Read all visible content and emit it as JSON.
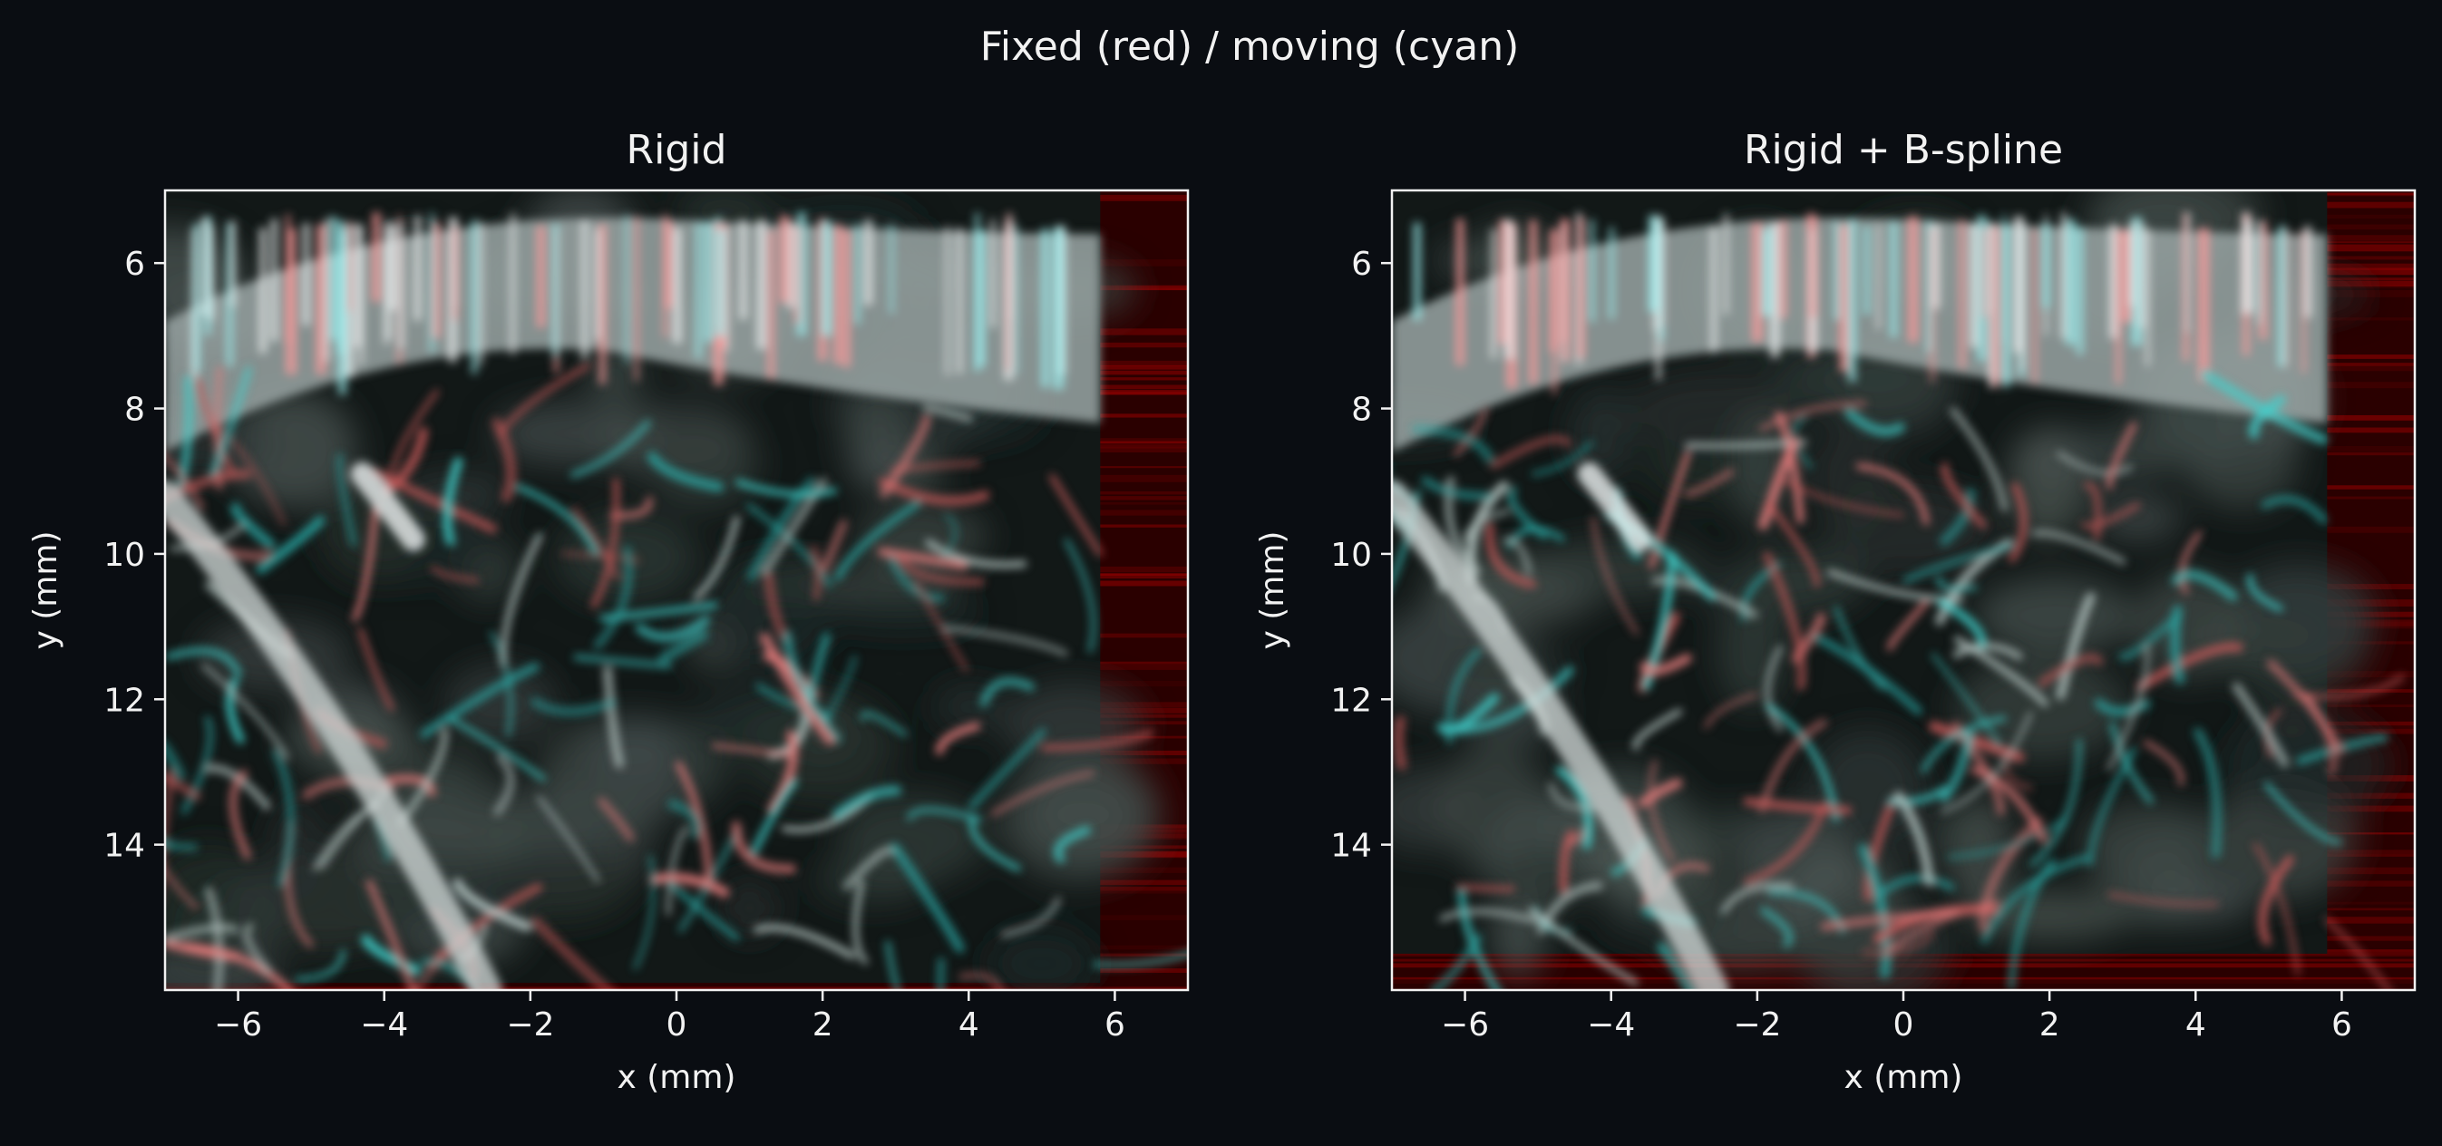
{
  "figure": {
    "suptitle": "Fixed (red) / moving (cyan)",
    "colors": {
      "background": "#0a0d12",
      "text": "#f2f2f2",
      "fixed_overlay": "#ff0000",
      "moving_overlay": "#00ffff"
    }
  },
  "chart_data": [
    {
      "type": "heatmap",
      "title": "Rigid",
      "xlabel": "x (mm)",
      "ylabel": "y (mm)",
      "xlim": [
        -7,
        7
      ],
      "ylim": [
        16,
        5
      ],
      "y_inverted": true,
      "xticks": [
        -6,
        -4,
        -2,
        0,
        2,
        4,
        6
      ],
      "xtick_labels": [
        "−6",
        "−4",
        "−2",
        "0",
        "2",
        "4",
        "6"
      ],
      "yticks": [
        6,
        8,
        10,
        12,
        14
      ],
      "ytick_labels": [
        "6",
        "8",
        "10",
        "12",
        "14"
      ],
      "grid": false,
      "content": "red/cyan overlay of fixed and moving ultrasound images after rigid registration",
      "moving_extent": {
        "x": [
          -7,
          5.8
        ],
        "y": [
          5,
          15.9
        ]
      }
    },
    {
      "type": "heatmap",
      "title": "Rigid + B-spline",
      "xlabel": "x (mm)",
      "ylabel": "y (mm)",
      "xlim": [
        -7,
        7
      ],
      "ylim": [
        16,
        5
      ],
      "y_inverted": true,
      "xticks": [
        -6,
        -4,
        -2,
        0,
        2,
        4,
        6
      ],
      "xtick_labels": [
        "−6",
        "−4",
        "−2",
        "0",
        "2",
        "4",
        "6"
      ],
      "yticks": [
        6,
        8,
        10,
        12,
        14
      ],
      "ytick_labels": [
        "6",
        "8",
        "10",
        "12",
        "14"
      ],
      "grid": false,
      "content": "red/cyan overlay of fixed and moving ultrasound images after rigid plus B-spline registration",
      "moving_extent": {
        "x": [
          -7,
          5.8
        ],
        "y": [
          5,
          15.5
        ]
      }
    }
  ]
}
